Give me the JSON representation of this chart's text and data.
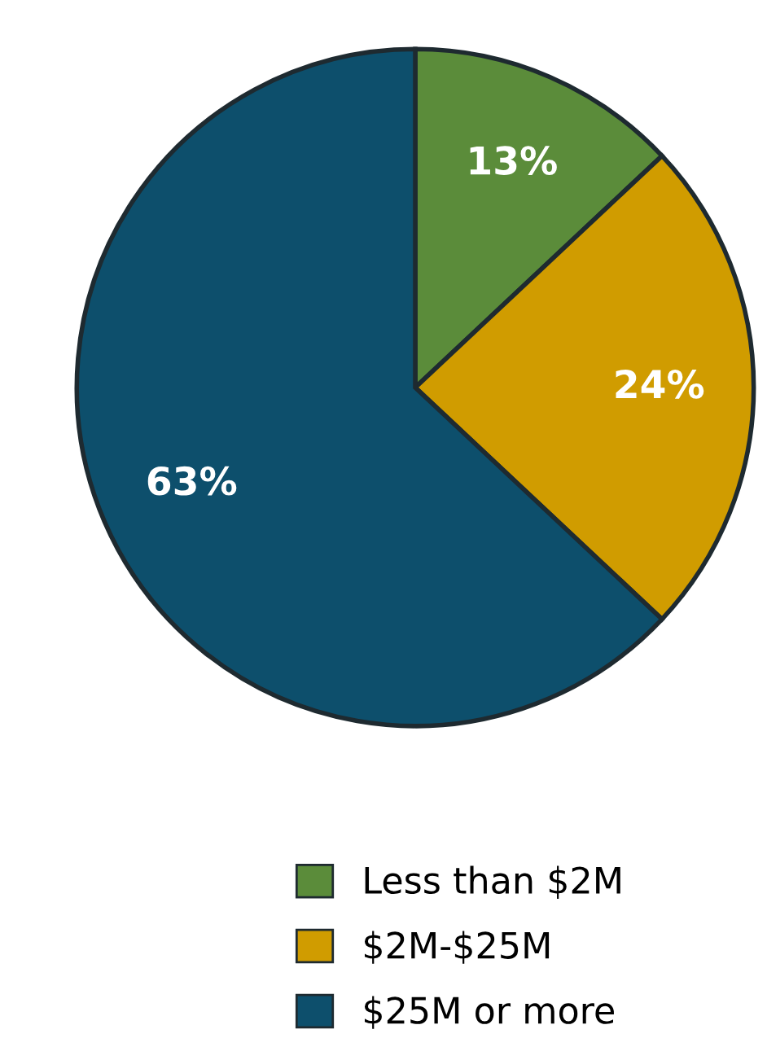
{
  "chart_data": {
    "type": "pie",
    "categories": [
      "Less than $2M",
      "$2M-$25M",
      "$25M or more"
    ],
    "values": [
      13,
      24,
      63
    ],
    "colors": [
      "#5b8c3a",
      "#d09c00",
      "#0d4f6c"
    ],
    "value_labels": [
      "13%",
      "24%",
      "63%"
    ],
    "legend": "bottom"
  }
}
